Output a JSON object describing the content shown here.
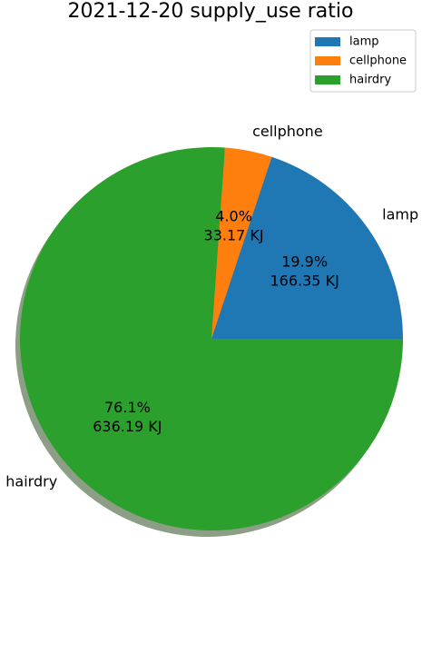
{
  "chart_data": {
    "type": "pie",
    "title": "2021-12-20 supply_use ratio",
    "unit": "KJ",
    "start_angle_deg": 0,
    "direction": "counterclockwise",
    "shadow": true,
    "legend_position": "top-right",
    "slices": [
      {
        "name": "lamp",
        "value": 166.35,
        "percent": "19.9%",
        "value_label": "166.35 KJ",
        "color": "#1f77b4"
      },
      {
        "name": "cellphone",
        "value": 33.17,
        "percent": "4.0%",
        "value_label": "33.17 KJ",
        "color": "#ff7f0e"
      },
      {
        "name": "hairdry",
        "value": 636.19,
        "percent": "76.1%",
        "value_label": "636.19 KJ",
        "color": "#2ca02c"
      }
    ],
    "legend": [
      "lamp",
      "cellphone",
      "hairdry"
    ]
  }
}
